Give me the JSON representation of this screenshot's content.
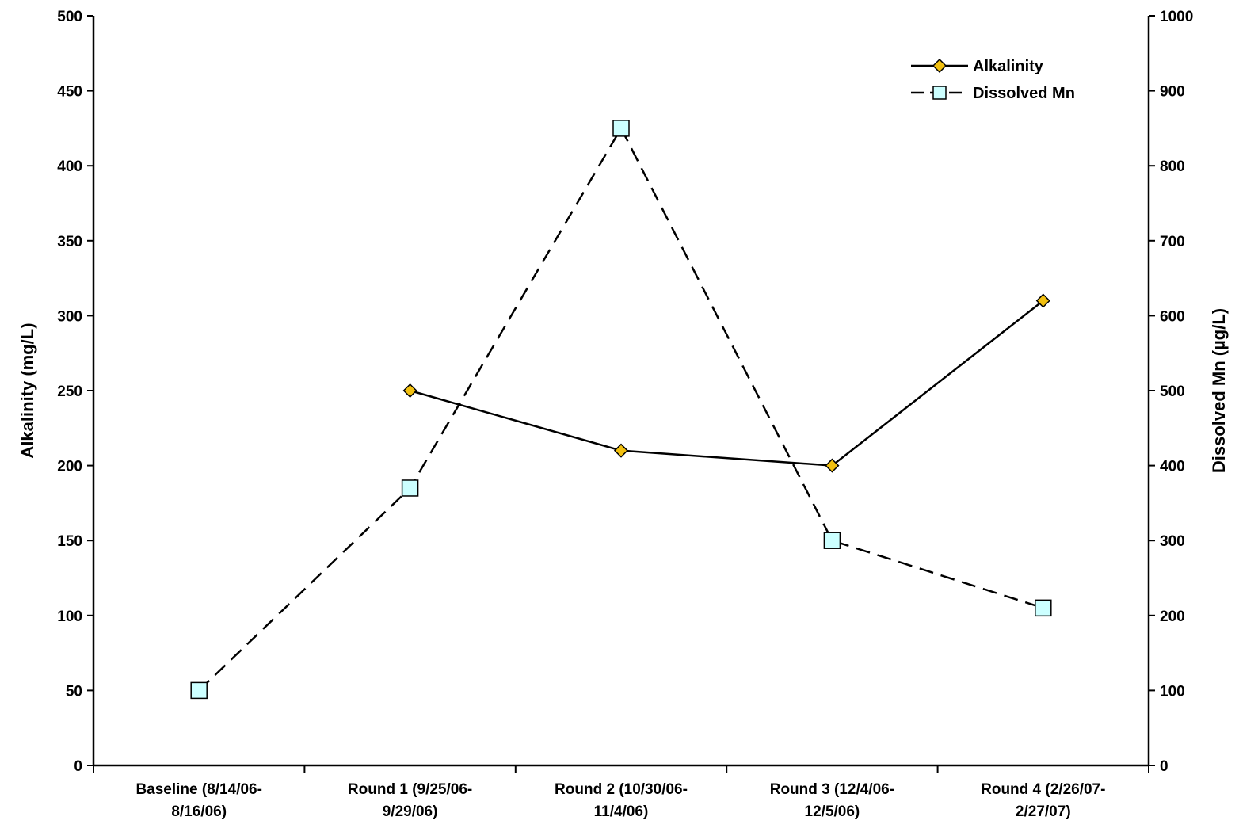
{
  "chart_data": {
    "type": "line",
    "categories": [
      [
        "Baseline (8/14/06-",
        "8/16/06)"
      ],
      [
        "Round 1 (9/25/06-",
        "9/29/06)"
      ],
      [
        "Round 2 (10/30/06-",
        "11/4/06)"
      ],
      [
        "Round 3 (12/4/06-",
        "12/5/06)"
      ],
      [
        "Round 4 (2/26/07-",
        "2/27/07)"
      ]
    ],
    "ylabel_left": "Alkalinity (mg/L)",
    "ylabel_right": "Dissolved Mn (µg/L)",
    "ylim_left": [
      0,
      500
    ],
    "ylim_right": [
      0,
      1000
    ],
    "yticks_left": [
      0,
      50,
      100,
      150,
      200,
      250,
      300,
      350,
      400,
      450,
      500
    ],
    "yticks_right": [
      0,
      100,
      200,
      300,
      400,
      500,
      600,
      700,
      800,
      900,
      1000
    ],
    "grid": false,
    "legend_position": "top-right",
    "series": [
      {
        "name": "Alkalinity",
        "axis": "left",
        "values": [
          null,
          250,
          210,
          200,
          310
        ],
        "line_style": "solid",
        "marker": "diamond",
        "marker_color": "#F2C010"
      },
      {
        "name": "Dissolved Mn",
        "axis": "right",
        "values": [
          100,
          370,
          850,
          300,
          210
        ],
        "line_style": "dashed",
        "marker": "square",
        "marker_color": "#CCFFFF"
      }
    ]
  }
}
